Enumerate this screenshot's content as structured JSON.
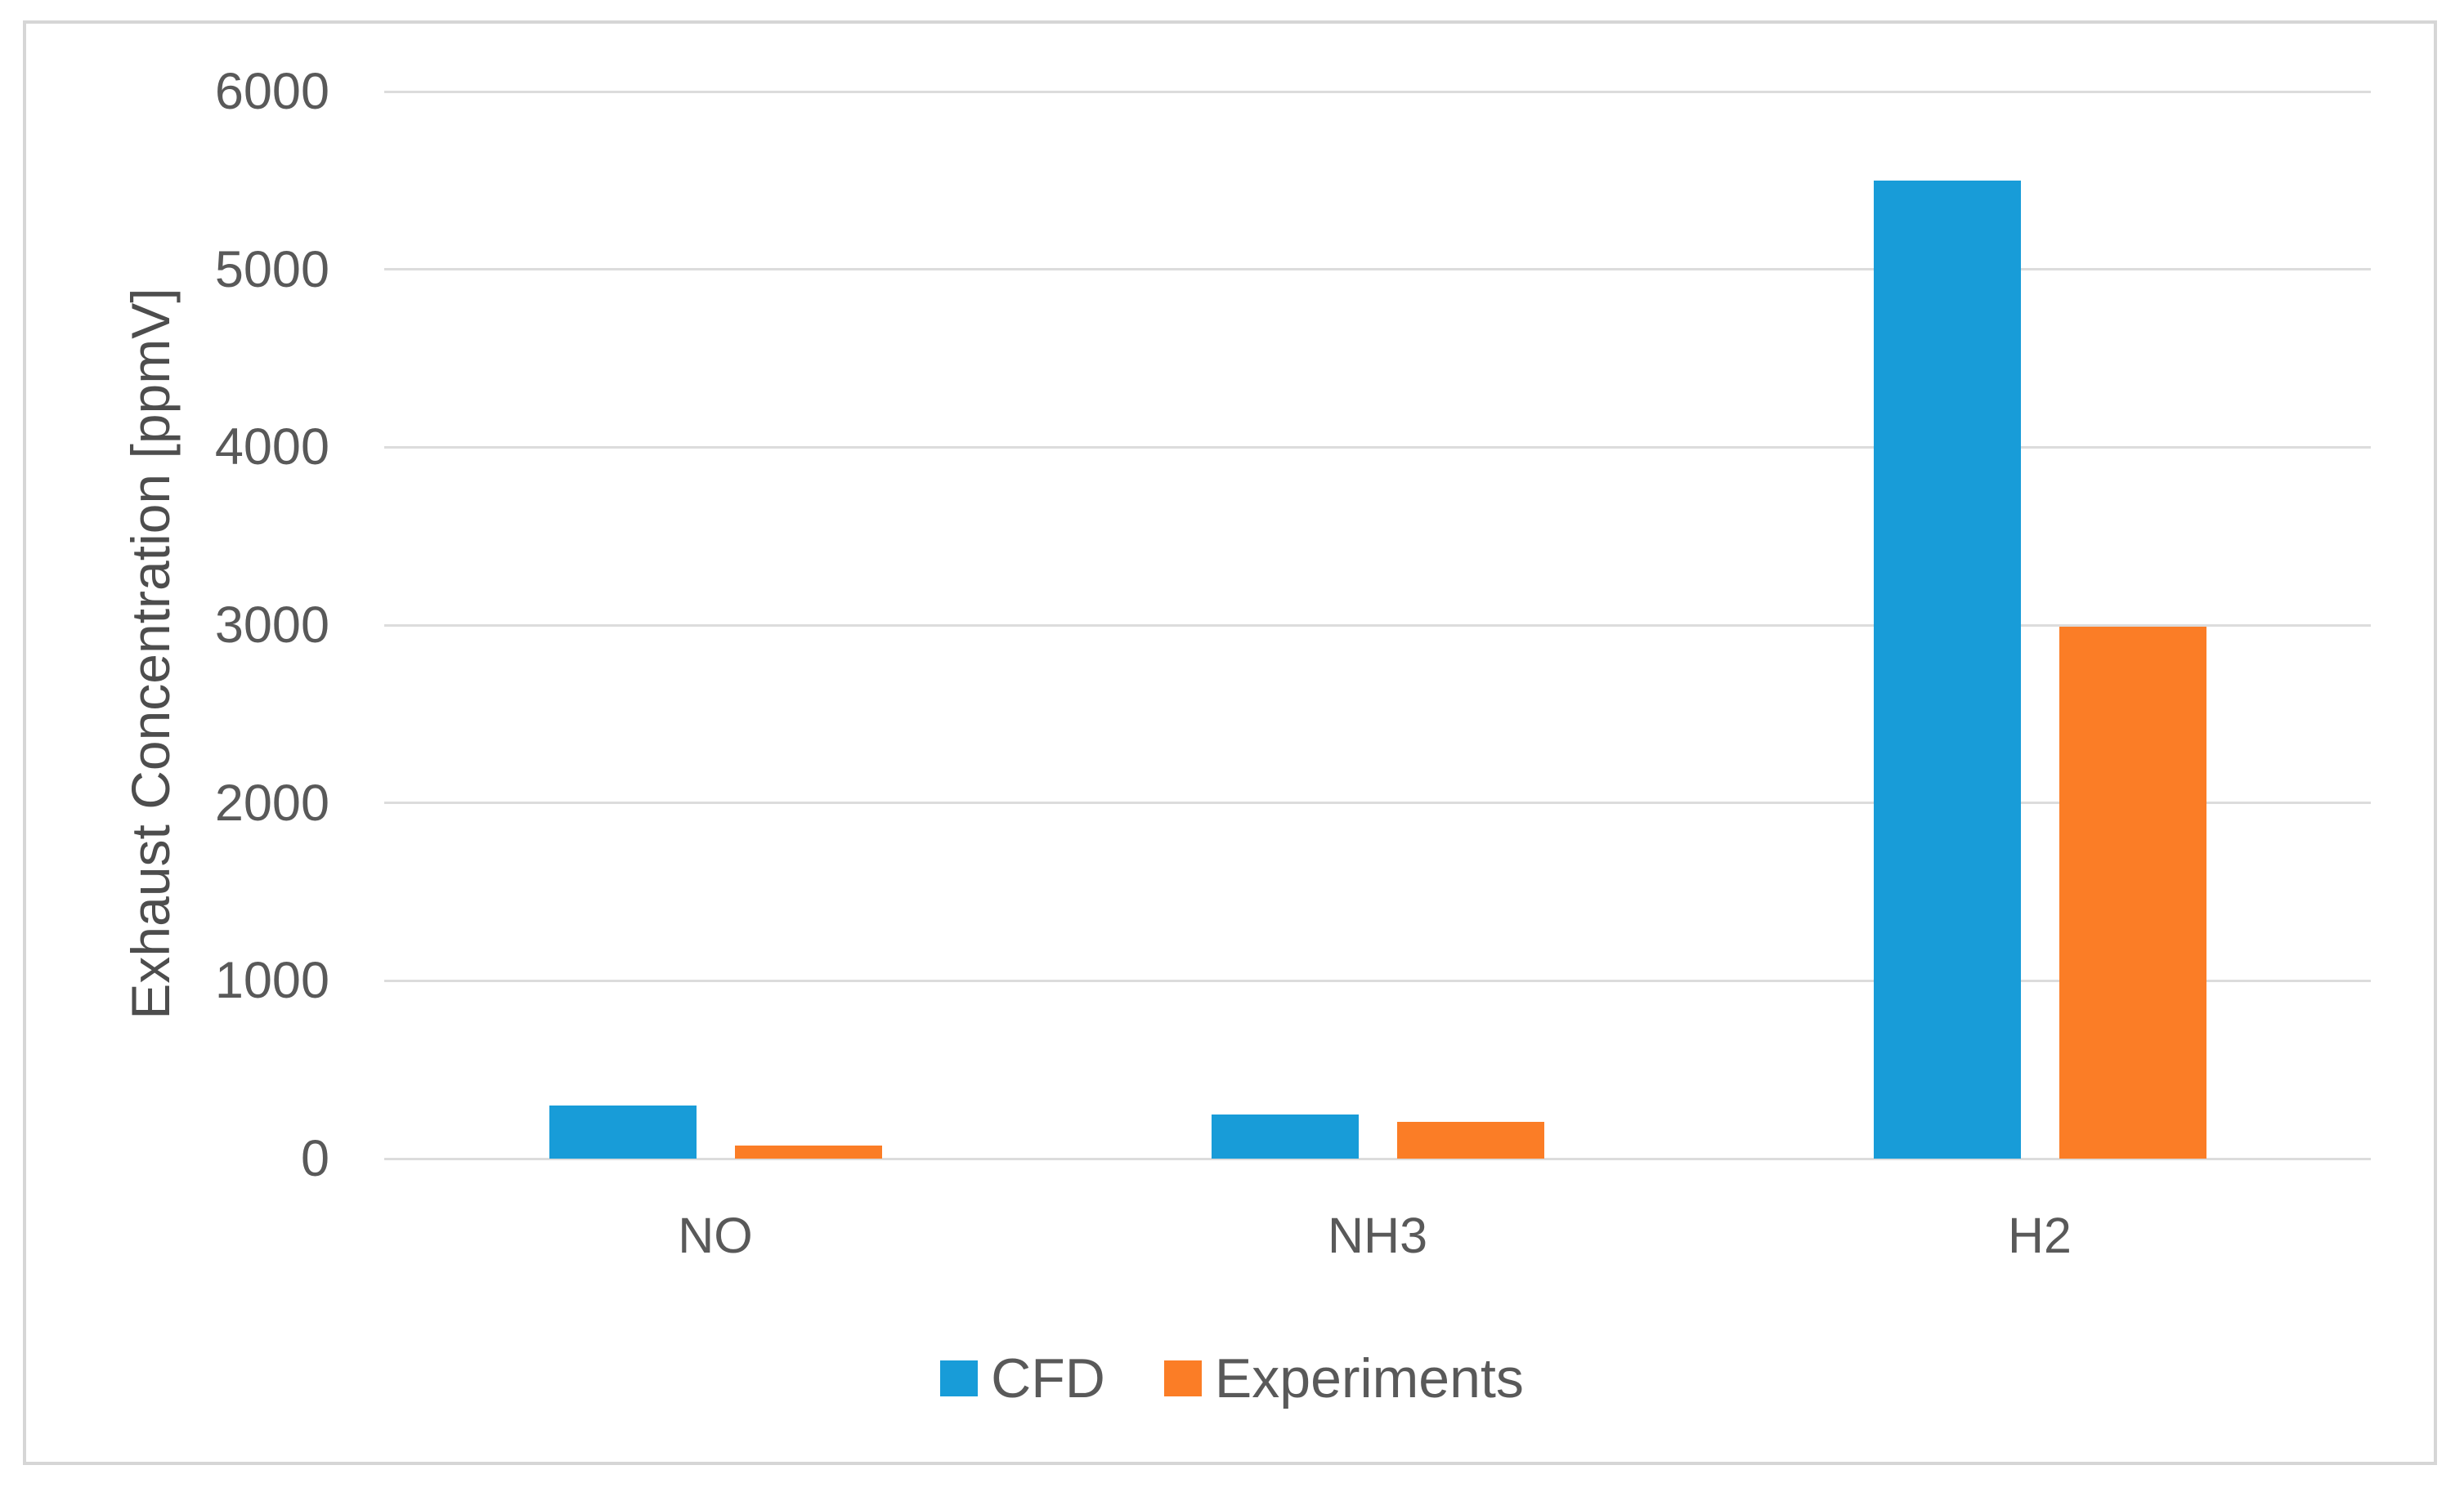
{
  "chart_data": {
    "type": "bar",
    "title": "",
    "categories": [
      "NO",
      "NH3",
      "H2"
    ],
    "series": [
      {
        "name": "CFD",
        "color": "#189CD8",
        "values": [
          300,
          250,
          5500
        ]
      },
      {
        "name": "Experiments",
        "color": "#FB7D26",
        "values": [
          75,
          205,
          2990
        ]
      }
    ],
    "xlabel": "",
    "ylabel": "Exhaust Concentration [ppmV]",
    "ylim": [
      0,
      6000
    ],
    "yticks": [
      0,
      1000,
      2000,
      3000,
      4000,
      5000,
      6000
    ],
    "grid": true,
    "legend_position": "bottom"
  },
  "colors": {
    "bar_cfd": "#189CD8",
    "bar_experiments": "#FB7D26",
    "gridline": "#DCDCDC",
    "frame_border": "#D6D6D6",
    "tick_text": "#595959",
    "axis_title_text": "#4D4D4D",
    "background": "#FFFFFF"
  }
}
